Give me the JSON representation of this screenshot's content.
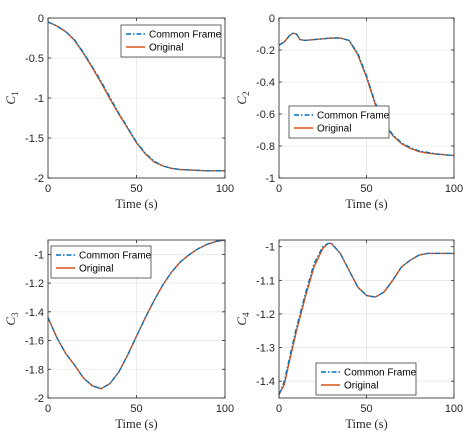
{
  "colors": {
    "common_frame": "#0072BD",
    "original": "#D95319",
    "axis": "#262626",
    "grid": "#e6e6e6"
  },
  "chart_data": [
    {
      "type": "line",
      "xlabel": "Time (s)",
      "ylabel_main": "C",
      "ylabel_sub": "1",
      "xlim": [
        0,
        100
      ],
      "ylim": [
        -2,
        0
      ],
      "xticks": [
        0,
        50,
        100
      ],
      "yticks": [
        0,
        -0.5,
        -1,
        -1.5,
        -2
      ],
      "ytick_labels": [
        "0",
        "-0.5",
        "-1",
        "-1.5",
        "-2"
      ],
      "grid": true,
      "legend_position": "top-right",
      "x": [
        0,
        5,
        10,
        15,
        20,
        25,
        30,
        35,
        40,
        45,
        50,
        55,
        60,
        65,
        70,
        75,
        80,
        85,
        90,
        95,
        100
      ],
      "series": [
        {
          "name": "Common Frame",
          "style": "dash-dot",
          "values": [
            -0.05,
            -0.1,
            -0.17,
            -0.27,
            -0.43,
            -0.61,
            -0.79,
            -0.99,
            -1.19,
            -1.37,
            -1.55,
            -1.69,
            -1.79,
            -1.85,
            -1.88,
            -1.895,
            -1.9,
            -1.905,
            -1.91,
            -1.91,
            -1.91
          ]
        },
        {
          "name": "Original",
          "style": "solid",
          "values": [
            -0.05,
            -0.1,
            -0.17,
            -0.28,
            -0.44,
            -0.62,
            -0.81,
            -1.01,
            -1.2,
            -1.38,
            -1.56,
            -1.7,
            -1.8,
            -1.85,
            -1.88,
            -1.895,
            -1.9,
            -1.905,
            -1.91,
            -1.91,
            -1.91
          ]
        }
      ]
    },
    {
      "type": "line",
      "xlabel": "Time (s)",
      "ylabel_main": "C",
      "ylabel_sub": "2",
      "xlim": [
        0,
        100
      ],
      "ylim": [
        -1,
        0
      ],
      "xticks": [
        0,
        50,
        100
      ],
      "yticks": [
        0,
        -0.2,
        -0.4,
        -0.6,
        -0.8,
        -1
      ],
      "ytick_labels": [
        "0",
        "-0.2",
        "-0.4",
        "-0.6",
        "-0.8",
        "-1"
      ],
      "grid": true,
      "legend_position": "middle-right",
      "x": [
        0,
        3,
        6,
        8,
        10,
        12,
        15,
        20,
        25,
        30,
        35,
        40,
        45,
        50,
        55,
        60,
        65,
        70,
        75,
        80,
        85,
        90,
        95,
        100
      ],
      "series": [
        {
          "name": "Common Frame",
          "style": "dash-dot",
          "values": [
            -0.17,
            -0.15,
            -0.11,
            -0.095,
            -0.1,
            -0.135,
            -0.14,
            -0.135,
            -0.13,
            -0.125,
            -0.125,
            -0.14,
            -0.22,
            -0.36,
            -0.53,
            -0.65,
            -0.73,
            -0.78,
            -0.81,
            -0.83,
            -0.84,
            -0.85,
            -0.855,
            -0.86
          ]
        },
        {
          "name": "Original",
          "style": "solid",
          "values": [
            -0.17,
            -0.15,
            -0.11,
            -0.095,
            -0.1,
            -0.135,
            -0.14,
            -0.135,
            -0.13,
            -0.125,
            -0.125,
            -0.14,
            -0.23,
            -0.37,
            -0.54,
            -0.66,
            -0.735,
            -0.785,
            -0.815,
            -0.835,
            -0.845,
            -0.85,
            -0.855,
            -0.86
          ]
        }
      ]
    },
    {
      "type": "line",
      "xlabel": "Time (s)",
      "ylabel_main": "C",
      "ylabel_sub": "3",
      "xlim": [
        0,
        100
      ],
      "ylim": [
        -2,
        -0.9
      ],
      "xticks": [
        0,
        50,
        100
      ],
      "yticks": [
        -1,
        -1.2,
        -1.4,
        -1.6,
        -1.8,
        -2
      ],
      "ytick_labels": [
        "-1",
        "-1.2",
        "-1.4",
        "-1.6",
        "-1.8",
        "-2"
      ],
      "grid": true,
      "legend_position": "top-left",
      "x": [
        0,
        5,
        10,
        15,
        20,
        25,
        30,
        35,
        40,
        45,
        50,
        55,
        60,
        65,
        70,
        75,
        80,
        85,
        90,
        95,
        100
      ],
      "series": [
        {
          "name": "Common Frame",
          "style": "dash-dot",
          "values": [
            -1.44,
            -1.58,
            -1.69,
            -1.77,
            -1.86,
            -1.915,
            -1.935,
            -1.9,
            -1.82,
            -1.7,
            -1.57,
            -1.44,
            -1.32,
            -1.21,
            -1.12,
            -1.05,
            -1.0,
            -0.96,
            -0.93,
            -0.91,
            -0.9
          ]
        },
        {
          "name": "Original",
          "style": "solid",
          "values": [
            -1.44,
            -1.58,
            -1.69,
            -1.77,
            -1.86,
            -1.915,
            -1.935,
            -1.9,
            -1.82,
            -1.7,
            -1.57,
            -1.44,
            -1.32,
            -1.21,
            -1.12,
            -1.05,
            -1.0,
            -0.96,
            -0.93,
            -0.91,
            -0.9
          ]
        }
      ]
    },
    {
      "type": "line",
      "xlabel": "Time (s)",
      "ylabel_main": "C",
      "ylabel_sub": "4",
      "xlim": [
        0,
        100
      ],
      "ylim": [
        -1.45,
        -0.98
      ],
      "xticks": [
        0,
        50,
        100
      ],
      "yticks": [
        -1,
        -1.1,
        -1.2,
        -1.3,
        -1.4
      ],
      "ytick_labels": [
        "-1",
        "-1.1",
        "-1.2",
        "-1.3",
        "-1.4"
      ],
      "grid": true,
      "legend_position": "bottom-right",
      "x": [
        0,
        3,
        6,
        10,
        15,
        20,
        25,
        28,
        30,
        35,
        40,
        45,
        50,
        55,
        60,
        65,
        70,
        75,
        80,
        85,
        90,
        95,
        100
      ],
      "series": [
        {
          "name": "Common Frame",
          "style": "dash-dot",
          "values": [
            -1.44,
            -1.4,
            -1.33,
            -1.24,
            -1.14,
            -1.05,
            -1.0,
            -0.99,
            -0.99,
            -1.02,
            -1.07,
            -1.12,
            -1.145,
            -1.15,
            -1.135,
            -1.1,
            -1.06,
            -1.04,
            -1.025,
            -1.02,
            -1.02,
            -1.02,
            -1.02
          ]
        },
        {
          "name": "Original",
          "style": "solid",
          "values": [
            -1.44,
            -1.41,
            -1.34,
            -1.25,
            -1.15,
            -1.06,
            -1.005,
            -0.99,
            -0.99,
            -1.02,
            -1.07,
            -1.12,
            -1.145,
            -1.15,
            -1.135,
            -1.1,
            -1.06,
            -1.04,
            -1.025,
            -1.02,
            -1.02,
            -1.02,
            -1.02
          ]
        }
      ]
    }
  ]
}
